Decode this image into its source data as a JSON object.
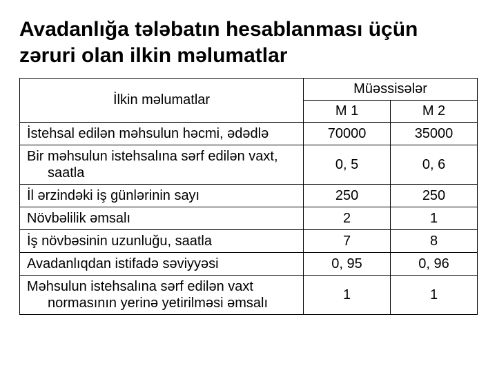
{
  "title": "Avadanlığa tələbatın hesablanması üçün zəruri olan ilkin məlumatlar",
  "headers": {
    "ilkin": "İlkin məlumatlar",
    "muess": "Müəssisələr",
    "m1": "M 1",
    "m2": "M 2"
  },
  "rows": [
    {
      "label": "İstehsal edilən məhsulun həcmi, ədədlə",
      "indent": "",
      "m1": "70000",
      "m2": "35000"
    },
    {
      "label": "Bir məhsulun istehsalına sərf edilən vaxt,",
      "indent": "saatla",
      "m1": "0, 5",
      "m2": "0, 6"
    },
    {
      "label": "İl ərzindəki iş günlərinin sayı",
      "indent": "",
      "m1": "250",
      "m2": "250"
    },
    {
      "label": "Növbəlilik əmsalı",
      "indent": "",
      "m1": "2",
      "m2": "1"
    },
    {
      "label": "İş növbəsinin uzunluğu, saatla",
      "indent": "",
      "m1": "7",
      "m2": "8"
    },
    {
      "label": "Avadanlıqdan istifadə səviyyəsi",
      "indent": "",
      "m1": "0, 95",
      "m2": "0, 96"
    },
    {
      "label": "Məhsulun istehsalına sərf edilən vaxt",
      "indent": "normasının yerinə yetirilməsi əmsalı",
      "m1": "1",
      "m2": "1"
    }
  ],
  "style": {
    "title_fontsize": 30,
    "title_color": "#000000",
    "cell_fontsize": 20,
    "border_color": "#000000",
    "background_color": "#ffffff"
  }
}
